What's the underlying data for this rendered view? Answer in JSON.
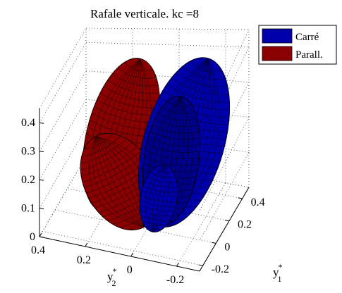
{
  "chart_data": {
    "type": "surface3d",
    "title": "Rafale verticale. kc =8",
    "axes": {
      "x": {
        "label_base": "y",
        "label_sup": "*",
        "label_sub": "1",
        "ticks": [
          "-0.2",
          "0",
          "0.2",
          "0.4"
        ],
        "range": [
          -0.25,
          0.5
        ]
      },
      "y": {
        "label_base": "y",
        "label_sup": "*",
        "label_sub": "2",
        "ticks": [
          "-0.2",
          "0",
          "0.2",
          "0.4"
        ],
        "range": [
          -0.3,
          0.4
        ]
      },
      "z": {
        "ticks": [
          "0",
          "0.1",
          "0.2",
          "0.3",
          "0.4"
        ],
        "range": [
          0,
          0.45
        ]
      }
    },
    "grid": true,
    "legend": {
      "position": "top-right",
      "entries": [
        "Carré",
        "Parall."
      ]
    },
    "series": [
      {
        "name": "Carré",
        "color": "#0000aa",
        "shape": "two nested ellipsoidal lobes oriented toward +y1",
        "max_height": 0.45
      },
      {
        "name": "Parall.",
        "color": "#8b0000",
        "shape": "two ellipsoidal lobes oriented toward +y2",
        "max_height": 0.42
      }
    ]
  }
}
